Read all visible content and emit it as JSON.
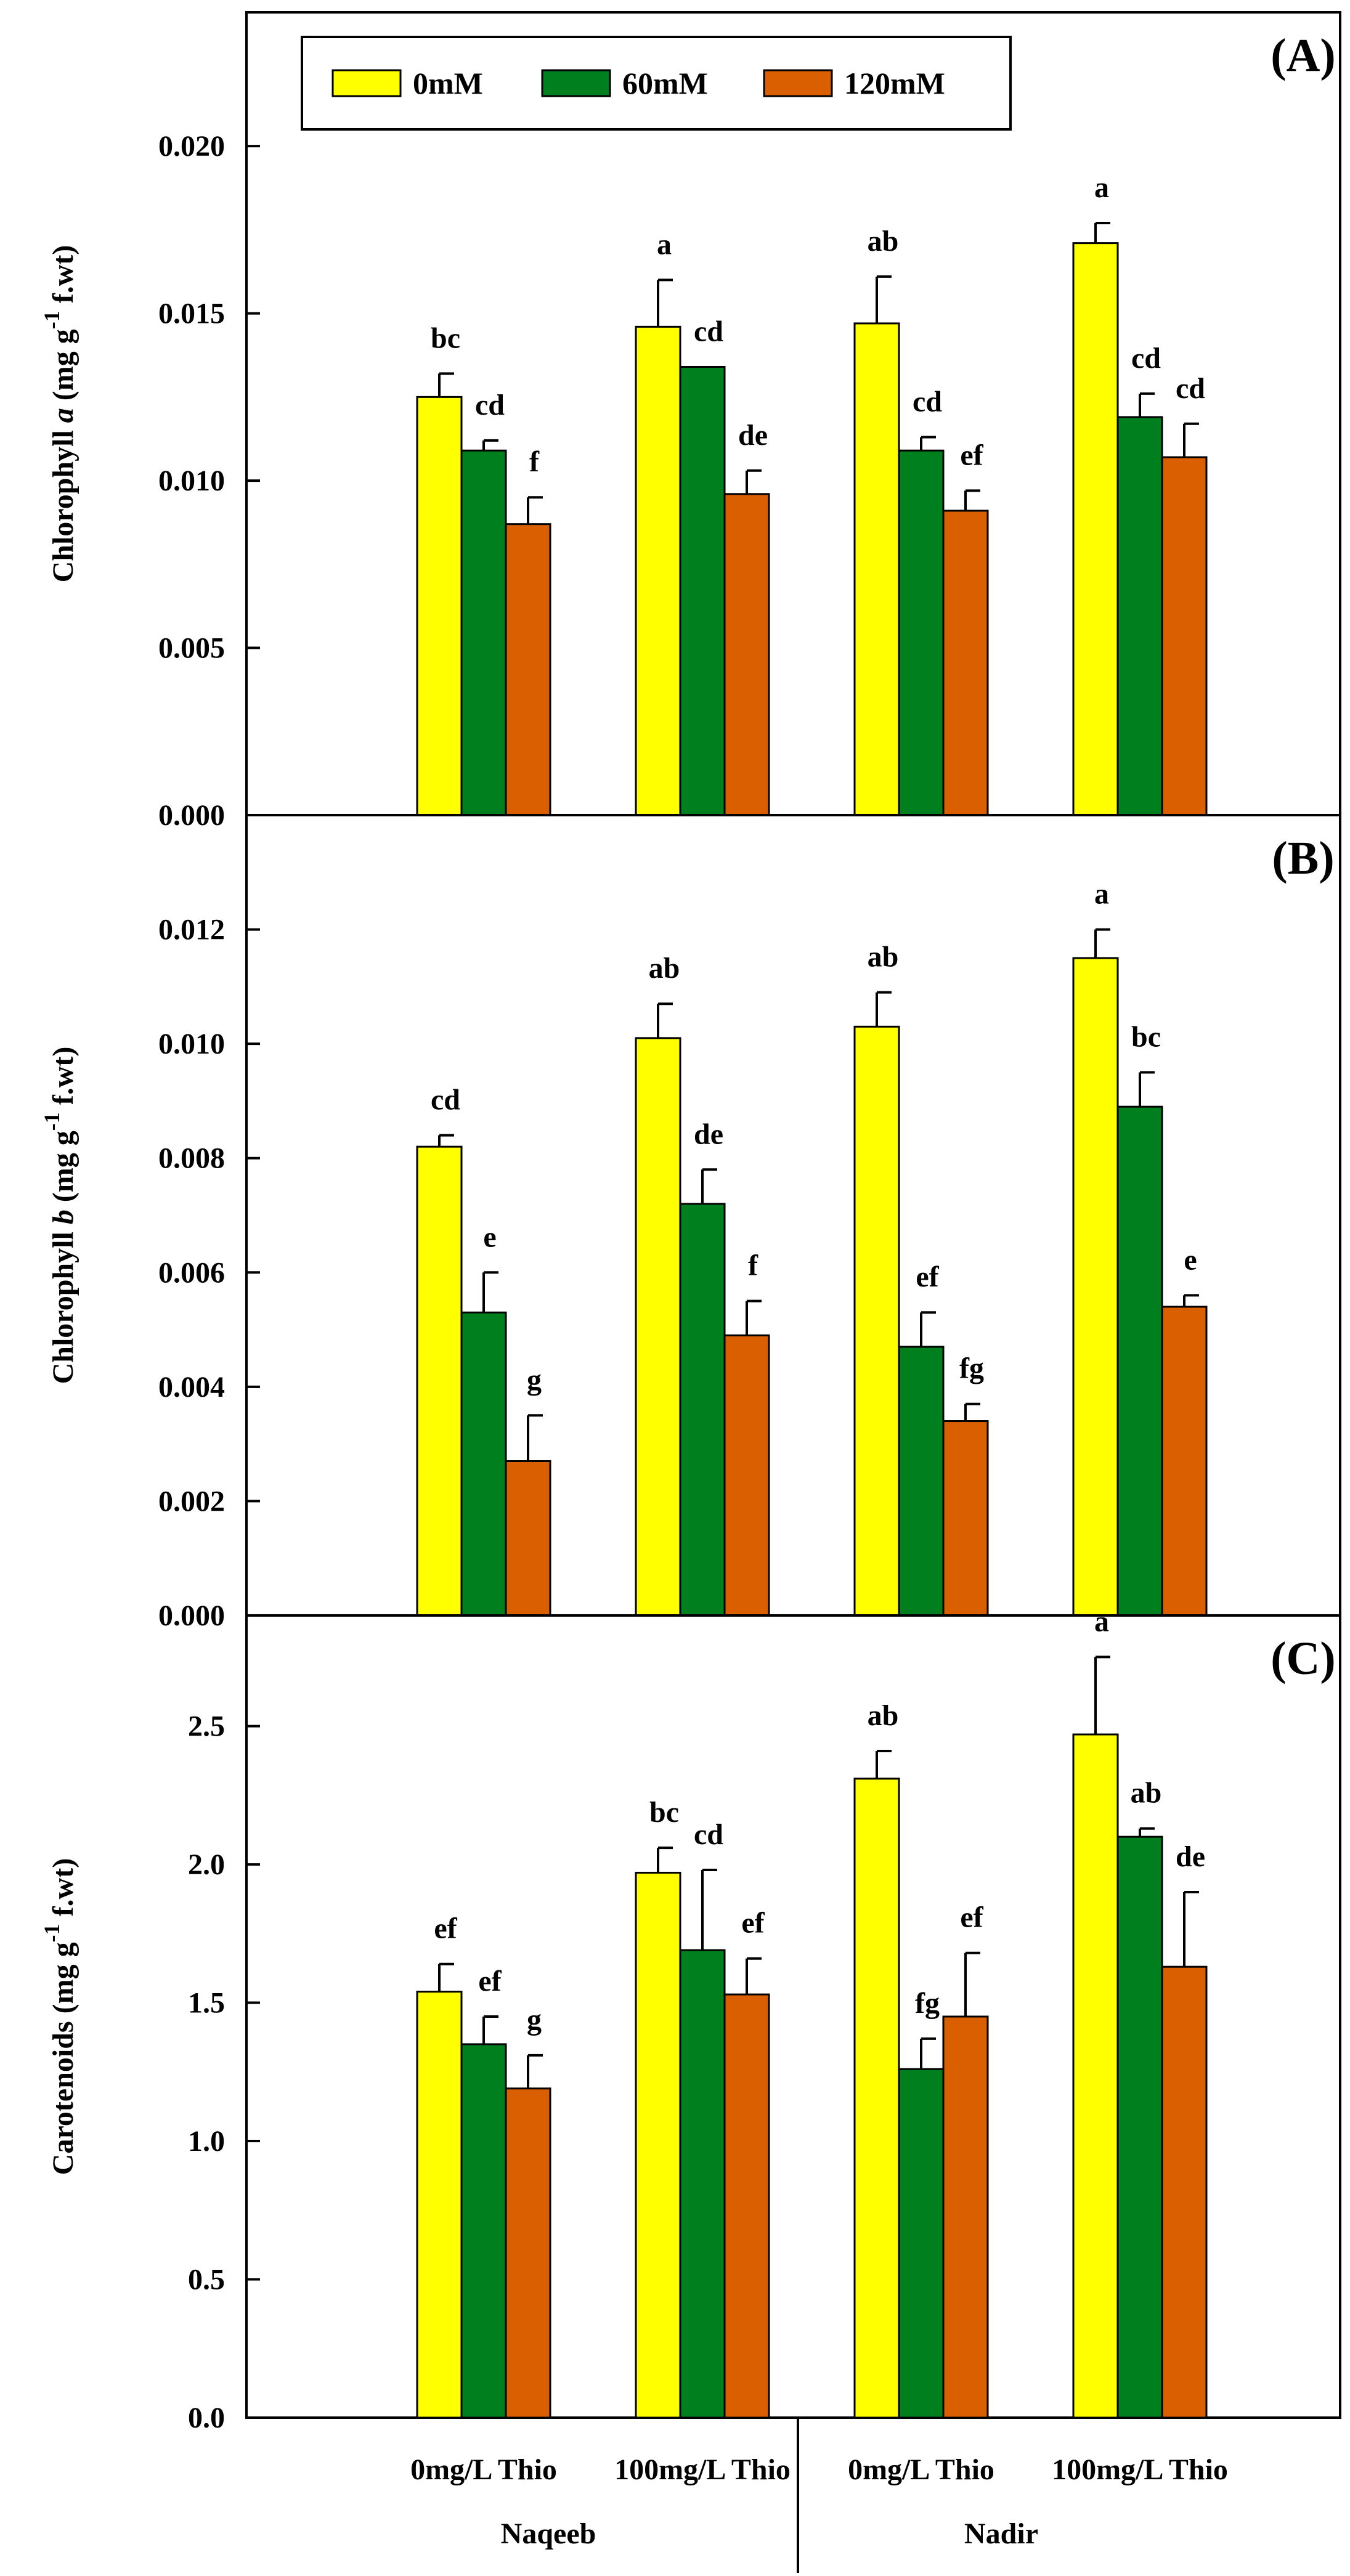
{
  "legend": [
    {
      "label": "0mM",
      "color": "#ffff00"
    },
    {
      "label": "60mM",
      "color": "#007f1f"
    },
    {
      "label": "120mM",
      "color": "#d95f00"
    }
  ],
  "chart_data": [
    {
      "type": "bar",
      "panel": "(A)",
      "ylabel_parts": {
        "main": "Chlorophyll ",
        "italic": "a",
        "mid": " (mg g",
        "sup": "-1",
        "end": " f.wt)"
      },
      "ylim": [
        0,
        0.024
      ],
      "yticks": [
        0,
        0.005,
        0.01,
        0.015,
        0.02
      ],
      "ytick_labels": [
        "0.000",
        "0.005",
        "0.010",
        "0.015",
        "0.020"
      ],
      "categories": [
        "0mg/L Thio",
        "100mg/L Thio",
        "0mg/L Thio",
        "100mg/L Thio"
      ],
      "series": [
        {
          "name": "0mM",
          "values": [
            0.0125,
            0.0146,
            0.0147,
            0.0171
          ],
          "errors": [
            0.0007,
            0.0014,
            0.0014,
            0.0006
          ],
          "letters": [
            "bc",
            "a",
            "ab",
            "a"
          ]
        },
        {
          "name": "60mM",
          "values": [
            0.0109,
            0.0134,
            0.0109,
            0.0119
          ],
          "errors": [
            0.0003,
            0.0,
            0.0004,
            0.0007
          ],
          "letters": [
            "cd",
            "cd",
            "cd",
            "cd"
          ]
        },
        {
          "name": "120mM",
          "values": [
            0.0087,
            0.0096,
            0.0091,
            0.0107
          ],
          "errors": [
            0.0008,
            0.0007,
            0.0006,
            0.001
          ],
          "letters": [
            "f",
            "de",
            "ef",
            "cd"
          ]
        }
      ]
    },
    {
      "type": "bar",
      "panel": "(B)",
      "ylabel_parts": {
        "main": "Chlorophyll ",
        "italic": "b",
        "mid": " (mg g",
        "sup": "-1",
        "end": " f.wt)"
      },
      "ylim": [
        0,
        0.014
      ],
      "yticks": [
        0,
        0.002,
        0.004,
        0.006,
        0.008,
        0.01,
        0.012
      ],
      "ytick_labels": [
        "0.000",
        "0.002",
        "0.004",
        "0.006",
        "0.008",
        "0.010",
        "0.012"
      ],
      "categories": [
        "0mg/L Thio",
        "100mg/L Thio",
        "0mg/L Thio",
        "100mg/L Thio"
      ],
      "series": [
        {
          "name": "0mM",
          "values": [
            0.0082,
            0.0101,
            0.0103,
            0.0115
          ],
          "errors": [
            0.0002,
            0.0006,
            0.0006,
            0.0005
          ],
          "letters": [
            "cd",
            "ab",
            "ab",
            "a"
          ]
        },
        {
          "name": "60mM",
          "values": [
            0.0053,
            0.0072,
            0.0047,
            0.0089
          ],
          "errors": [
            0.0007,
            0.0006,
            0.0006,
            0.0006
          ],
          "letters": [
            "e",
            "de",
            "ef",
            "bc"
          ]
        },
        {
          "name": "120mM",
          "values": [
            0.0027,
            0.0049,
            0.0034,
            0.0054
          ],
          "errors": [
            0.0008,
            0.0006,
            0.0003,
            0.0002
          ],
          "letters": [
            "g",
            "f",
            "fg",
            "e"
          ]
        }
      ]
    },
    {
      "type": "bar",
      "panel": "(C)",
      "ylabel_parts": {
        "main": "Carotenoids (mg g",
        "italic": "",
        "mid": "",
        "sup": "-1",
        "end": " f.wt)"
      },
      "ylim": [
        0,
        2.9
      ],
      "yticks": [
        0,
        0.5,
        1,
        1.5,
        2,
        2.5
      ],
      "ytick_labels": [
        "0.0",
        "0.5",
        "1.0",
        "1.5",
        "2.0",
        "2.5"
      ],
      "categories": [
        "0mg/L Thio",
        "100mg/L Thio",
        "0mg/L Thio",
        "100mg/L Thio"
      ],
      "series": [
        {
          "name": "0mM",
          "values": [
            1.54,
            1.97,
            2.31,
            2.47
          ],
          "errors": [
            0.1,
            0.09,
            0.1,
            0.28
          ],
          "letters": [
            "ef",
            "bc",
            "ab",
            "a"
          ]
        },
        {
          "name": "60mM",
          "values": [
            1.35,
            1.69,
            1.26,
            2.1
          ],
          "errors": [
            0.1,
            0.29,
            0.11,
            0.03
          ],
          "letters": [
            "ef",
            "cd",
            "fg",
            "ab"
          ]
        },
        {
          "name": "120mM",
          "values": [
            1.19,
            1.53,
            1.45,
            1.63
          ],
          "errors": [
            0.12,
            0.13,
            0.23,
            0.27
          ],
          "letters": [
            "g",
            "ef",
            "ef",
            "de"
          ]
        }
      ]
    }
  ],
  "x_categories": [
    "0mg/L Thio",
    "100mg/L Thio",
    "0mg/L Thio",
    "100mg/L Thio"
  ],
  "groups": [
    "Naqeeb",
    "Nadir"
  ]
}
